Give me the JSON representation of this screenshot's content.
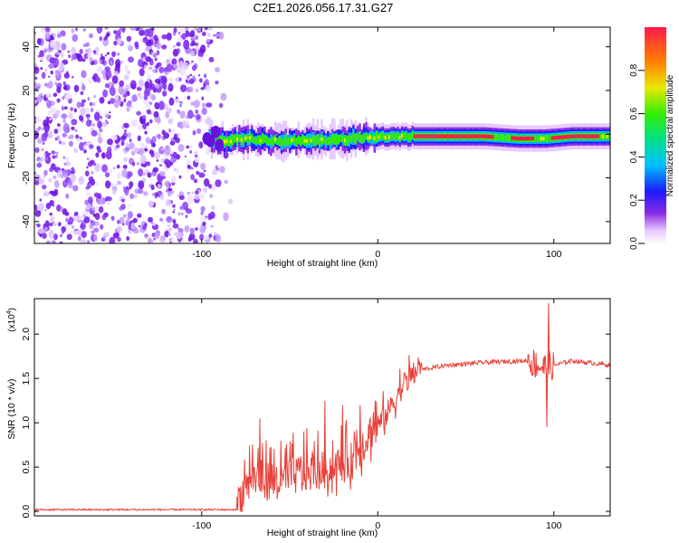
{
  "title": "C2E1.2026.056.17.31.G27",
  "colors": {
    "snr_line": "#e8413a",
    "scatter_purple": "#7a1ff0",
    "axis": "#000000"
  },
  "chart_data": [
    {
      "type": "heatmap",
      "name": "spectrogram",
      "xlabel": "Height of straight line (km)",
      "ylabel": "Frequency (Hz)",
      "xlim": [
        -195,
        132
      ],
      "ylim": [
        -50,
        49
      ],
      "xticks": [
        -100,
        0,
        100
      ],
      "xtick_labels": [
        "-100",
        "0",
        "100"
      ],
      "yticks": [
        -40,
        -20,
        0,
        20,
        40
      ],
      "ytick_labels": [
        "-40",
        "-20",
        "0",
        "20",
        "40"
      ],
      "noise_region_km": [
        -195,
        -82
      ],
      "signal_track": [
        {
          "x": -95,
          "y": -3
        },
        {
          "x": -85,
          "y": -3
        },
        {
          "x": -75,
          "y": -2
        },
        {
          "x": -60,
          "y": -3
        },
        {
          "x": -45,
          "y": -3
        },
        {
          "x": -30,
          "y": -3
        },
        {
          "x": -15,
          "y": -2
        },
        {
          "x": 0,
          "y": -1
        },
        {
          "x": 20,
          "y": -1
        },
        {
          "x": 40,
          "y": -1
        },
        {
          "x": 60,
          "y": -1
        },
        {
          "x": 80,
          "y": -2
        },
        {
          "x": 95,
          "y": -2
        },
        {
          "x": 110,
          "y": -1
        },
        {
          "x": 132,
          "y": -1
        }
      ],
      "colorbar": {
        "label": "Normalized spectral amplitude",
        "range": [
          0,
          1
        ],
        "ticks": [
          0.0,
          0.2,
          0.4,
          0.6,
          0.8
        ],
        "tick_labels": [
          "0.0",
          "0.2",
          "0.4",
          "0.6",
          "0.8"
        ]
      }
    },
    {
      "type": "line",
      "name": "snr",
      "xlabel": "Height of straight line (km)",
      "ylabel": "SNR (10 * v/v)",
      "yscale_label": "(x10",
      "yscale_exp": "4",
      "yscale_close": ")",
      "xlim": [
        -195,
        132
      ],
      "ylim": [
        -0.05,
        2.4
      ],
      "xticks": [
        -100,
        0,
        100
      ],
      "xtick_labels": [
        "-100",
        "0",
        "100"
      ],
      "yticks": [
        0.0,
        0.5,
        1.0,
        1.5,
        2.0
      ],
      "ytick_labels": [
        "0.0",
        "0.5",
        "1.0",
        "1.5",
        "2.0"
      ],
      "series": [
        {
          "name": "SNR",
          "trend": [
            {
              "x": -195,
              "y": 0.02
            },
            {
              "x": -80,
              "y": 0.02
            },
            {
              "x": -72,
              "y": 0.35
            },
            {
              "x": -60,
              "y": 0.25
            },
            {
              "x": -45,
              "y": 0.35
            },
            {
              "x": -30,
              "y": 0.4
            },
            {
              "x": -15,
              "y": 0.5
            },
            {
              "x": -5,
              "y": 0.8
            },
            {
              "x": 5,
              "y": 1.05
            },
            {
              "x": 15,
              "y": 1.4
            },
            {
              "x": 25,
              "y": 1.6
            },
            {
              "x": 40,
              "y": 1.65
            },
            {
              "x": 60,
              "y": 1.68
            },
            {
              "x": 85,
              "y": 1.7
            },
            {
              "x": 95,
              "y": 1.62
            },
            {
              "x": 110,
              "y": 1.7
            },
            {
              "x": 132,
              "y": 1.65
            }
          ],
          "peaks": [
            {
              "x": -67,
              "y": 1.05
            },
            {
              "x": -55,
              "y": 0.8
            },
            {
              "x": -42,
              "y": 0.9
            },
            {
              "x": -30,
              "y": 1.25
            },
            {
              "x": -20,
              "y": 1.2
            },
            {
              "x": -10,
              "y": 1.2
            },
            {
              "x": 97,
              "y": 2.35
            },
            {
              "x": 96,
              "y": 0.95
            }
          ]
        }
      ]
    }
  ]
}
